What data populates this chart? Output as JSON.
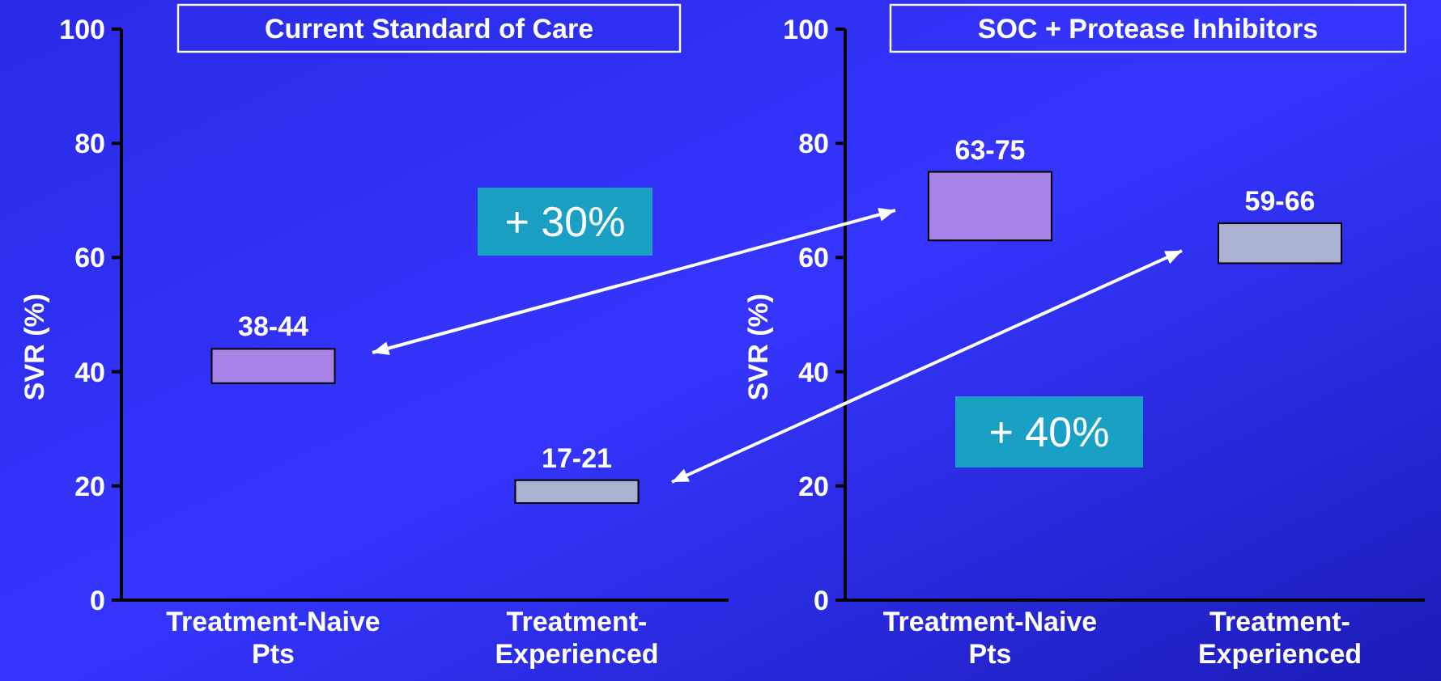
{
  "chart_data": [
    {
      "type": "bar",
      "title": "Current Standard of Care",
      "ylabel": "SVR (%)",
      "categories": [
        "Treatment-Naive Pts",
        "Treatment-Experienced"
      ],
      "base": [
        38,
        17
      ],
      "values": [
        6,
        4
      ],
      "colors": [
        "#a882e6",
        "#aab2d2"
      ],
      "value_labels": [
        "38-44",
        "17-21"
      ],
      "ylim": [
        0,
        100
      ],
      "yticks": [
        0,
        20,
        40,
        60,
        80,
        100
      ],
      "annotations": [
        "+ 30%"
      ]
    },
    {
      "type": "bar",
      "title": "SOC + Protease Inhibitors",
      "ylabel": "SVR (%)",
      "categories": [
        "Treatment-Naive Pts",
        "Treatment-Experienced"
      ],
      "base": [
        63,
        59
      ],
      "values": [
        12,
        7
      ],
      "colors": [
        "#a882e6",
        "#aab2d2"
      ],
      "value_labels": [
        "63-75",
        "59-66"
      ],
      "ylim": [
        0,
        100
      ],
      "yticks": [
        0,
        20,
        40,
        60,
        80,
        100
      ],
      "annotations": [
        "+ 40%"
      ]
    }
  ]
}
